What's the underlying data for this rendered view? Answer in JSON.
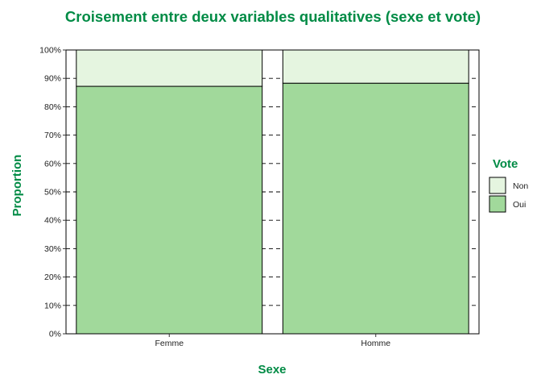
{
  "chart_data": {
    "type": "bar",
    "stacked": true,
    "title": "Croisement entre deux variables qualitatives (sexe et vote)",
    "xlabel": "Sexe",
    "ylabel": "Proportion",
    "categories": [
      "Femme",
      "Homme"
    ],
    "series": [
      {
        "name": "Oui",
        "values": [
          0.872,
          0.883
        ],
        "color": "#a1d99b"
      },
      {
        "name": "Non",
        "values": [
          0.128,
          0.117
        ],
        "color": "#e5f5e0"
      }
    ],
    "ylim": [
      0,
      1
    ],
    "yticks": [
      0,
      0.1,
      0.2,
      0.3,
      0.4,
      0.5,
      0.6,
      0.7,
      0.8,
      0.9,
      1.0
    ],
    "ytick_labels": [
      "0%",
      "10%",
      "20%",
      "30%",
      "40%",
      "50%",
      "60%",
      "70%",
      "80%",
      "90%",
      "100%"
    ],
    "grid": "horizontal dashed",
    "legend": {
      "title": "Vote",
      "position": "right",
      "entries": [
        "Non",
        "Oui"
      ]
    },
    "colors": {
      "title": "#008b45",
      "grid": "#000000",
      "panel_border": "#000000"
    }
  }
}
